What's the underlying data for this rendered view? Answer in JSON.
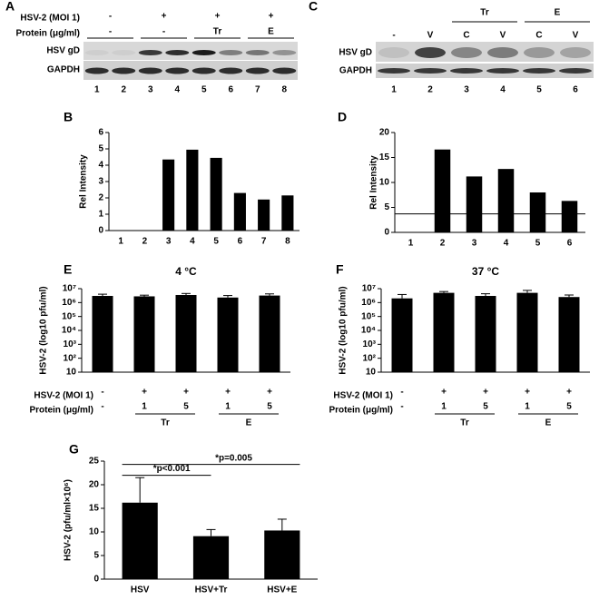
{
  "blots": [
    {
      "panel": "A",
      "header_rows": [
        {
          "label": "HSV-2 (MOI 1)",
          "cells": [
            "-",
            "+",
            "+",
            "+"
          ]
        },
        {
          "label": "Protein (μg/ml)",
          "cells": [
            "-",
            "-",
            "Tr",
            "E"
          ]
        }
      ],
      "rows": [
        "HSV gD",
        "GAPDH"
      ],
      "lanes": [
        "1",
        "2",
        "3",
        "4",
        "5",
        "6",
        "7",
        "8"
      ]
    },
    {
      "panel": "C",
      "groups": [
        "Tr",
        "E"
      ],
      "lane_labels": [
        "-",
        "V",
        "C",
        "V",
        "C",
        "V"
      ],
      "rows": [
        "HSV gD",
        "GAPDH"
      ],
      "lanes": [
        "1",
        "2",
        "3",
        "4",
        "5",
        "6"
      ]
    }
  ],
  "chart_data": [
    {
      "type": "bar",
      "panel": "B",
      "y_label": "Rel Intensity",
      "categories": [
        "1",
        "2",
        "3",
        "4",
        "5",
        "6",
        "7",
        "8"
      ],
      "values": [
        0,
        0,
        4.35,
        4.95,
        4.45,
        2.3,
        1.9,
        2.15
      ],
      "color": "#000000",
      "ylim": [
        0,
        6
      ],
      "yticks": [
        0,
        1,
        2,
        3,
        4,
        5,
        6
      ]
    },
    {
      "type": "bar",
      "panel": "D",
      "y_label": "Rel Intensity",
      "categories": [
        "1",
        "2",
        "3",
        "4",
        "5",
        "6"
      ],
      "values": [
        0,
        16.6,
        11.2,
        12.7,
        8,
        6.3
      ],
      "color": "#000000",
      "ylim": [
        0,
        20
      ],
      "yticks": [
        0,
        5,
        10,
        15,
        20
      ],
      "reference_line": 3.7
    },
    {
      "type": "bar",
      "panel": "E",
      "title": "4 °C",
      "y_label": "HSV-2 (log10 pfu/ml)",
      "log_scale": true,
      "values": [
        3000000,
        2800000,
        3500000,
        2300000,
        3200000
      ],
      "errors": [
        1000000,
        600000,
        1000000,
        900000,
        1000000
      ],
      "color": "#000000",
      "ylim": [
        10,
        10000000
      ],
      "yticks": [
        10,
        {
          "value": 100,
          "label": "10²"
        },
        {
          "value": 1000,
          "label": "10³"
        },
        {
          "value": 10000,
          "label": "10⁴"
        },
        {
          "value": 100000,
          "label": "10⁵"
        },
        {
          "value": 1000000,
          "label": "10⁶"
        },
        {
          "value": 10000000,
          "label": "10⁷"
        }
      ],
      "x_table": {
        "rows": [
          {
            "label": "HSV-2 (MOI 1)",
            "cells": [
              "-",
              "+",
              "+",
              "+",
              "+"
            ]
          },
          {
            "label": "Protein (μg/ml)",
            "cells": [
              "-",
              "1",
              "5",
              "1",
              "5"
            ]
          }
        ],
        "groups": [
          "Tr",
          "E"
        ]
      }
    },
    {
      "type": "bar",
      "panel": "F",
      "title": "37 °C",
      "y_label": "HSV-2 (log10 pfu/ml)",
      "log_scale": true,
      "values": [
        2000000,
        5000000,
        3000000,
        5000000,
        2500000
      ],
      "errors": [
        1800000,
        1200000,
        1300000,
        2500000,
        1000000
      ],
      "color": "#000000",
      "ylim": [
        10,
        10000000
      ],
      "yticks": [
        10,
        {
          "value": 100,
          "label": "10²"
        },
        {
          "value": 1000,
          "label": "10³"
        },
        {
          "value": 10000,
          "label": "10⁴"
        },
        {
          "value": 100000,
          "label": "10⁵"
        },
        {
          "value": 1000000,
          "label": "10⁶"
        },
        {
          "value": 10000000,
          "label": "10⁷"
        }
      ],
      "x_table": {
        "rows": [
          {
            "label": "HSV-2 (MOI 1)",
            "cells": [
              "-",
              "+",
              "+",
              "+",
              "+"
            ]
          },
          {
            "label": "Protein (μg/ml)",
            "cells": [
              "-",
              "1",
              "5",
              "1",
              "5"
            ]
          }
        ],
        "groups": [
          "Tr",
          "E"
        ]
      }
    },
    {
      "type": "bar",
      "panel": "G",
      "y_label": "HSV-2 (pfu/ml×10⁶)",
      "categories": [
        "HSV",
        "HSV+Tr",
        "HSV+E"
      ],
      "values": [
        16.2,
        9.1,
        10.3
      ],
      "errors": [
        5.3,
        1.4,
        2.4
      ],
      "color": "#000000",
      "ylim": [
        0,
        25
      ],
      "yticks": [
        0,
        5,
        10,
        15,
        20,
        25
      ],
      "annotations": [
        "*p<0.001",
        "*p=0.005"
      ]
    }
  ]
}
